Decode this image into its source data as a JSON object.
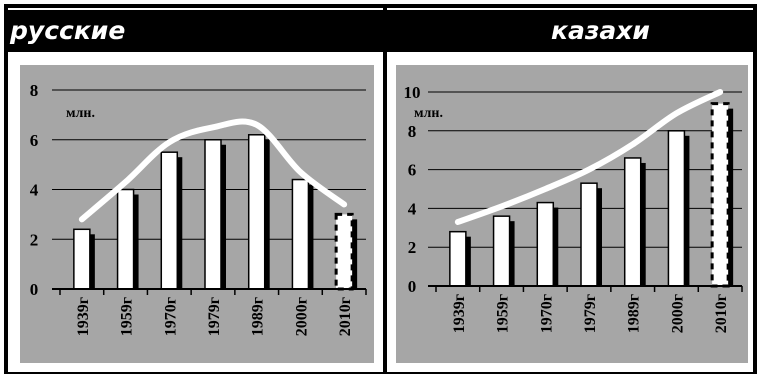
{
  "headers": {
    "left": "русские",
    "right": "казахи"
  },
  "chart_data": [
    {
      "type": "bar",
      "categories": [
        "1939г",
        "1959г",
        "1970г",
        "1979г",
        "1989г",
        "2000г",
        "2010г"
      ],
      "values": [
        2.4,
        4.0,
        5.5,
        6.0,
        6.2,
        4.4,
        3.0
      ],
      "unit_label": "млн.",
      "ylim": [
        0,
        8
      ],
      "yticks": [
        "0",
        "2",
        "4",
        "6",
        "8"
      ],
      "ytick_values": [
        0,
        2,
        4,
        6,
        8
      ],
      "trend_line": [
        2.8,
        4.3,
        5.9,
        6.5,
        6.6,
        4.7,
        3.4
      ],
      "last_bar_dashed": true,
      "grid": true
    },
    {
      "type": "bar",
      "categories": [
        "1939г",
        "1959г",
        "1970г",
        "1979г",
        "1989г",
        "2000г",
        "2010г"
      ],
      "values": [
        2.8,
        3.6,
        4.3,
        5.3,
        6.6,
        8.0,
        9.4
      ],
      "unit_label": "млн.",
      "ylim": [
        0,
        10
      ],
      "yticks": [
        "0",
        "2",
        "4",
        "6",
        "8",
        "10"
      ],
      "ytick_values": [
        0,
        2,
        4,
        6,
        8,
        10
      ],
      "trend_line": [
        3.3,
        4.1,
        5.0,
        6.0,
        7.3,
        8.9,
        10.0
      ],
      "last_bar_dashed": true,
      "grid": true
    }
  ],
  "colors": {
    "plot_bg": "#a6a6a6",
    "bar": "#ffffff",
    "bar_shadow": "#000000",
    "trend": "#ffffff",
    "header_bg": "#000000"
  }
}
